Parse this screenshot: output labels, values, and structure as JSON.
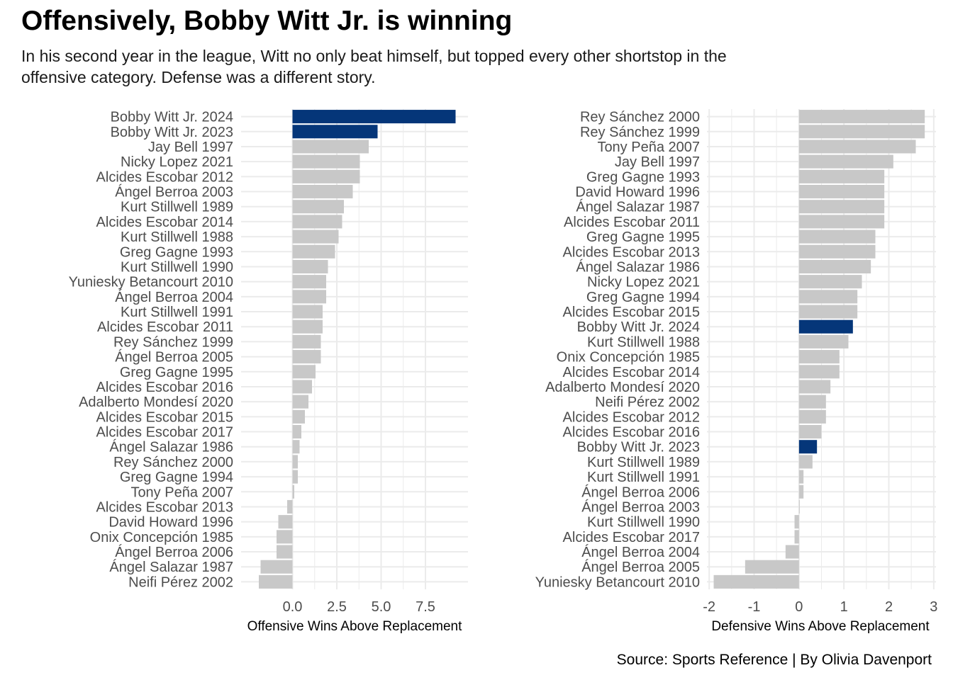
{
  "title": "Offensively, Bobby Witt Jr. is winning",
  "subtitle": "In his second year in the league, Witt no only beat himself, but topped every other shortstop in the offensive category. Defense was a different story.",
  "caption": "Source: Sports Reference | By Olivia Davenport",
  "colors": {
    "highlight": "#053679",
    "other": "#c8c8c8",
    "grid": "#ebebeb"
  },
  "chart_data": [
    {
      "type": "bar",
      "orientation": "horizontal",
      "xlabel": "Offensive Wins Above Replacement",
      "xlim": [
        -2.9,
        9.9
      ],
      "xticks": [
        0.0,
        2.5,
        5.0,
        7.5
      ],
      "xtick_labels": [
        "0.0",
        "2.5",
        "5.0",
        "7.5"
      ],
      "highlight": [
        "Bobby Witt Jr. 2024",
        "Bobby Witt Jr. 2023"
      ],
      "categories": [
        "Bobby Witt Jr. 2024",
        "Bobby Witt Jr. 2023",
        "Jay Bell 1997",
        "Nicky Lopez 2021",
        "Alcides Escobar 2012",
        "Ángel Berroa 2003",
        "Kurt Stillwell 1989",
        "Alcides Escobar 2014",
        "Kurt Stillwell 1988",
        "Greg Gagne 1993",
        "Kurt Stillwell 1990",
        "Yuniesky Betancourt 2010",
        "Ángel Berroa 2004",
        "Kurt Stillwell 1991",
        "Alcides Escobar 2011",
        "Rey Sánchez 1999",
        "Ángel Berroa 2005",
        "Greg Gagne 1995",
        "Alcides Escobar 2016",
        "Adalberto Mondesí 2020",
        "Alcides Escobar 2015",
        "Alcides Escobar 2017",
        "Ángel Salazar 1986",
        "Rey Sánchez 2000",
        "Greg Gagne 1994",
        "Tony Peña 2007",
        "Alcides Escobar 2013",
        "David Howard 1996",
        "Onix Concepción 1985",
        "Ángel Berroa 2006",
        "Ángel Salazar 1987",
        "Neifi Pérez 2002"
      ],
      "values": [
        9.2,
        4.8,
        4.3,
        3.8,
        3.8,
        3.4,
        2.9,
        2.8,
        2.6,
        2.4,
        2.0,
        1.9,
        1.9,
        1.7,
        1.7,
        1.6,
        1.6,
        1.3,
        1.1,
        0.9,
        0.7,
        0.5,
        0.4,
        0.3,
        0.3,
        0.1,
        -0.3,
        -0.8,
        -0.9,
        -0.9,
        -1.8,
        -1.9
      ]
    },
    {
      "type": "bar",
      "orientation": "horizontal",
      "xlabel": "Defensive Wins Above Replacement",
      "xlim": [
        -2.05,
        3.05
      ],
      "xticks": [
        -2,
        -1,
        0,
        1,
        2,
        3
      ],
      "xtick_labels": [
        "-2",
        "-1",
        "0",
        "1",
        "2",
        "3"
      ],
      "highlight": [
        "Bobby Witt Jr. 2024",
        "Bobby Witt Jr. 2023"
      ],
      "categories": [
        "Rey Sánchez 2000",
        "Rey Sánchez 1999",
        "Tony Peña 2007",
        "Jay Bell 1997",
        "Greg Gagne 1993",
        "David Howard 1996",
        "Ángel Salazar 1987",
        "Alcides Escobar 2011",
        "Greg Gagne 1995",
        "Alcides Escobar 2013",
        "Ángel Salazar 1986",
        "Nicky Lopez 2021",
        "Greg Gagne 1994",
        "Alcides Escobar 2015",
        "Bobby Witt Jr. 2024",
        "Kurt Stillwell 1988",
        "Onix Concepción 1985",
        "Alcides Escobar 2014",
        "Adalberto Mondesí 2020",
        "Neifi Pérez 2002",
        "Alcides Escobar 2012",
        "Alcides Escobar 2016",
        "Bobby Witt Jr. 2023",
        "Kurt Stillwell 1989",
        "Kurt Stillwell 1991",
        "Ángel Berroa 2006",
        "Ángel Berroa 2003",
        "Kurt Stillwell 1990",
        "Alcides Escobar 2017",
        "Ángel Berroa 2004",
        "Ángel Berroa 2005",
        "Yuniesky Betancourt 2010"
      ],
      "values": [
        2.8,
        2.8,
        2.6,
        2.1,
        1.9,
        1.9,
        1.9,
        1.9,
        1.7,
        1.7,
        1.6,
        1.4,
        1.3,
        1.3,
        1.2,
        1.1,
        0.9,
        0.9,
        0.7,
        0.6,
        0.6,
        0.5,
        0.4,
        0.3,
        0.1,
        0.1,
        0.0,
        -0.1,
        -0.1,
        -0.3,
        -1.2,
        -1.9
      ]
    }
  ]
}
